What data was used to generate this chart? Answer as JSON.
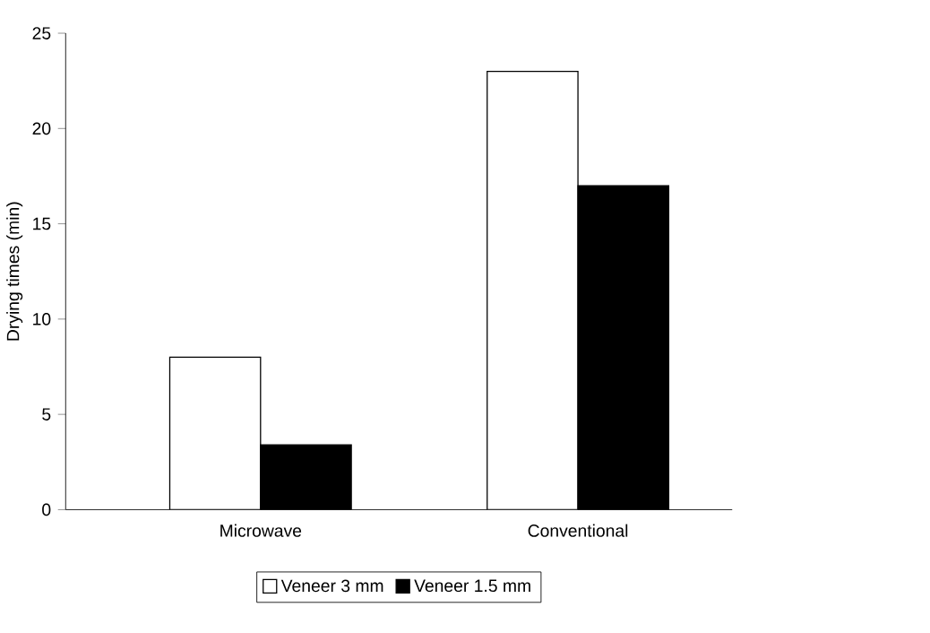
{
  "chart_data": {
    "type": "bar",
    "ylabel": "Drying times (min)",
    "categories": [
      "Microwave",
      "Conventional"
    ],
    "series": [
      {
        "name": "Veneer 3 mm",
        "color": "#ffffff",
        "values": [
          8,
          23
        ]
      },
      {
        "name": "Veneer 1.5 mm",
        "color": "#000000",
        "values": [
          3.4,
          17
        ]
      }
    ],
    "ylim": [
      0,
      25
    ],
    "yticks": [
      0,
      5,
      10,
      15,
      20,
      25
    ],
    "legend": "bottom",
    "grid": false
  }
}
